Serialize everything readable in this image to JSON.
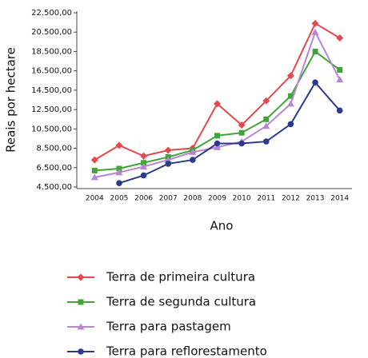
{
  "chart_data": {
    "type": "line",
    "x_label": "Ano",
    "y_label": "Reais por hectare",
    "categories": [
      "2004",
      "2005",
      "2006",
      "2007",
      "2008",
      "2009",
      "2010",
      "2011",
      "2012",
      "2013",
      "2014"
    ],
    "ylim": [
      4500,
      22500
    ],
    "yticks": [
      {
        "value": 4500,
        "label": "4.500,00"
      },
      {
        "value": 6500,
        "label": "6.500,00"
      },
      {
        "value": 8500,
        "label": "8.500,00"
      },
      {
        "value": 10500,
        "label": "10.500,00"
      },
      {
        "value": 12500,
        "label": "12.500,00"
      },
      {
        "value": 14500,
        "label": "14.500,00"
      },
      {
        "value": 16500,
        "label": "16.500,00"
      },
      {
        "value": 18500,
        "label": "18.500,00"
      },
      {
        "value": 20500,
        "label": "20.500,00"
      },
      {
        "value": 22500,
        "label": "22.500,00"
      }
    ],
    "series": [
      {
        "name": "Terra de primeira cultura",
        "color": "#e5484d",
        "marker": "diamond",
        "values": [
          7300,
          8800,
          7700,
          8300,
          8500,
          13100,
          10900,
          13400,
          16000,
          21400,
          19900
        ]
      },
      {
        "name": "Terra de segunda cultura",
        "color": "#3fa535",
        "marker": "square",
        "values": [
          6200,
          6400,
          7000,
          7600,
          8300,
          9800,
          10100,
          11500,
          13900,
          18500,
          16600
        ]
      },
      {
        "name": "Terra para pastagem",
        "color": "#b784d6",
        "marker": "triangle",
        "values": [
          5500,
          6000,
          6600,
          7300,
          8100,
          8600,
          9200,
          10800,
          13100,
          20500,
          15600
        ]
      },
      {
        "name": "Terra para reflorestamento",
        "color": "#2b3a8c",
        "marker": "circle",
        "values": [
          null,
          4900,
          5700,
          6900,
          7300,
          9000,
          9000,
          9200,
          11000,
          15300,
          12400
        ]
      }
    ]
  }
}
